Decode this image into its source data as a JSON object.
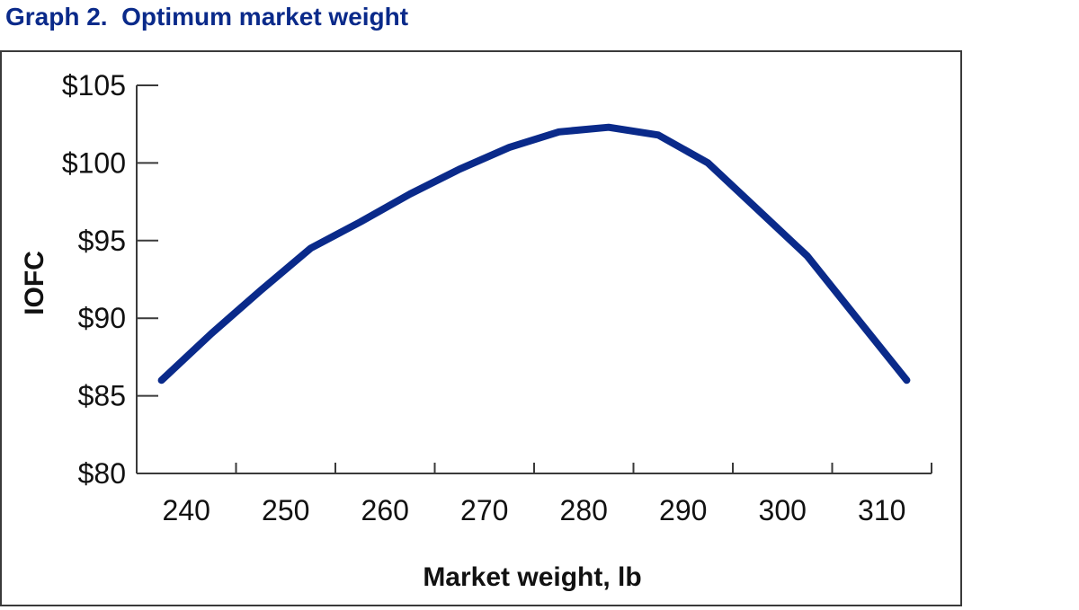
{
  "title": "Graph 2.  Optimum market weight",
  "colors": {
    "title": "#0a2a8a",
    "line": "#0a2a8a",
    "axis": "#3a3a3a"
  },
  "chart_data": {
    "type": "line",
    "title": "Graph 2.  Optimum market weight",
    "xlabel": "Market weight, lb",
    "ylabel": "IOFC",
    "xlim": [
      235,
      315
    ],
    "ylim": [
      80,
      105
    ],
    "x_ticks": [
      240,
      250,
      260,
      270,
      280,
      290,
      300,
      310
    ],
    "x_tick_labels": [
      "240",
      "250",
      "260",
      "270",
      "280",
      "290",
      "300",
      "310"
    ],
    "y_ticks": [
      80,
      85,
      90,
      95,
      100,
      105
    ],
    "y_tick_labels": [
      "$80",
      "$85",
      "$90",
      "$95",
      "$100",
      "$105"
    ],
    "grid": false,
    "legend": "none",
    "series": [
      {
        "x": [
          237.5,
          242.5,
          247.5,
          252.5,
          257.5,
          262.5,
          267.5,
          272.5,
          277.5,
          282.5,
          287.5,
          292.5,
          297.5,
          302.5,
          307.5,
          312.5
        ],
        "y": [
          86.0,
          89.0,
          91.8,
          94.5,
          96.2,
          98.0,
          99.6,
          101.0,
          102.0,
          102.3,
          101.8,
          100.0,
          97.0,
          94.0,
          90.0,
          86.0
        ]
      }
    ]
  }
}
